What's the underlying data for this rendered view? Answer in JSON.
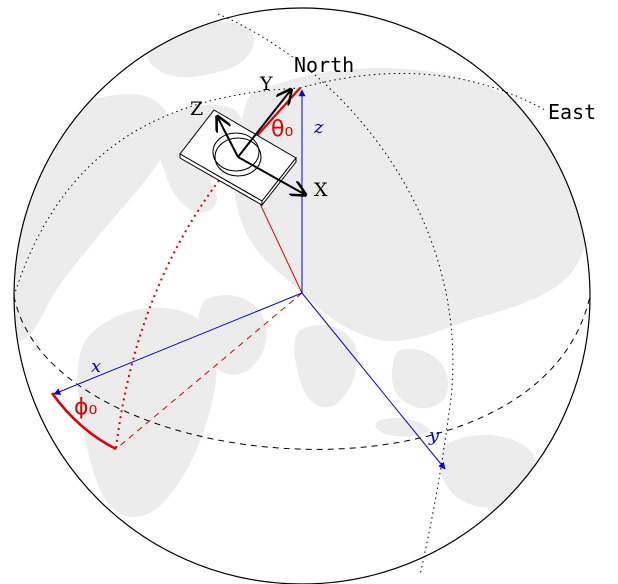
{
  "labels": {
    "north": "North",
    "east": "East",
    "theta": "θ₀",
    "phi": "ϕ₀",
    "sensor_x": "X",
    "sensor_y": "Y",
    "sensor_z": "Z",
    "earth_x": "x",
    "earth_y": "y",
    "earth_z": "z"
  },
  "colors": {
    "red": "#e00000",
    "blue": "#0000e6",
    "land": "#ececec",
    "outline": "#000000"
  }
}
